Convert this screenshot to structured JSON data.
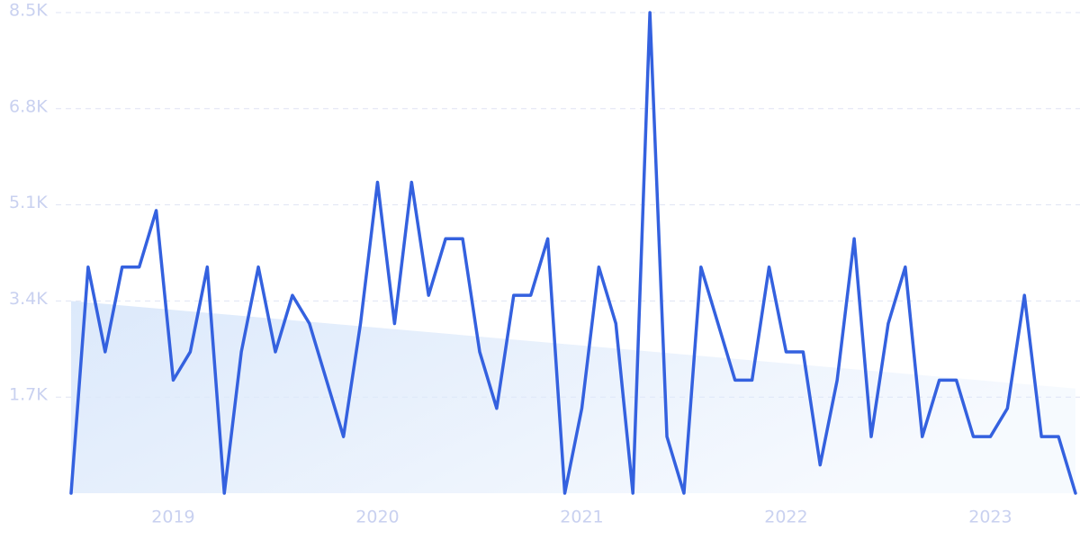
{
  "chart_data": {
    "type": "line",
    "categories": [
      null,
      null,
      null,
      null,
      null,
      null,
      "2019",
      null,
      null,
      null,
      null,
      null,
      null,
      null,
      null,
      null,
      null,
      null,
      "2020",
      null,
      null,
      null,
      null,
      null,
      null,
      null,
      null,
      null,
      null,
      null,
      "2021",
      null,
      null,
      null,
      null,
      null,
      null,
      null,
      null,
      null,
      null,
      null,
      "2022",
      null,
      null,
      null,
      null,
      null,
      null,
      null,
      null,
      null,
      null,
      null,
      "2023",
      null,
      null,
      null,
      null,
      null
    ],
    "values": [
      0,
      4000,
      2500,
      4000,
      4000,
      5000,
      2000,
      2500,
      4000,
      0,
      2500,
      4000,
      2500,
      3500,
      3000,
      2000,
      1000,
      3000,
      5500,
      3000,
      5500,
      3500,
      4500,
      4500,
      2500,
      1500,
      3500,
      3500,
      4500,
      0,
      1500,
      4000,
      3000,
      0,
      8500,
      1000,
      0,
      4000,
      3000,
      2000,
      2000,
      4000,
      2500,
      2500,
      500,
      2000,
      4500,
      1000,
      3000,
      4000,
      1000,
      2000,
      2000,
      1000,
      1000,
      1500,
      3500,
      1000,
      1000,
      0
    ],
    "color": "#3461df",
    "trend": [
      3400,
      1850
    ],
    "trend_color": "#dce9fb",
    "ylim": [
      0,
      8500
    ],
    "yticks": [
      {
        "value": 1700,
        "label": "1.7K"
      },
      {
        "value": 3400,
        "label": "3.4K"
      },
      {
        "value": 5100,
        "label": "5.1K"
      },
      {
        "value": 6800,
        "label": "6.8K"
      },
      {
        "value": 8500,
        "label": "8.5K"
      }
    ],
    "grid": true
  }
}
